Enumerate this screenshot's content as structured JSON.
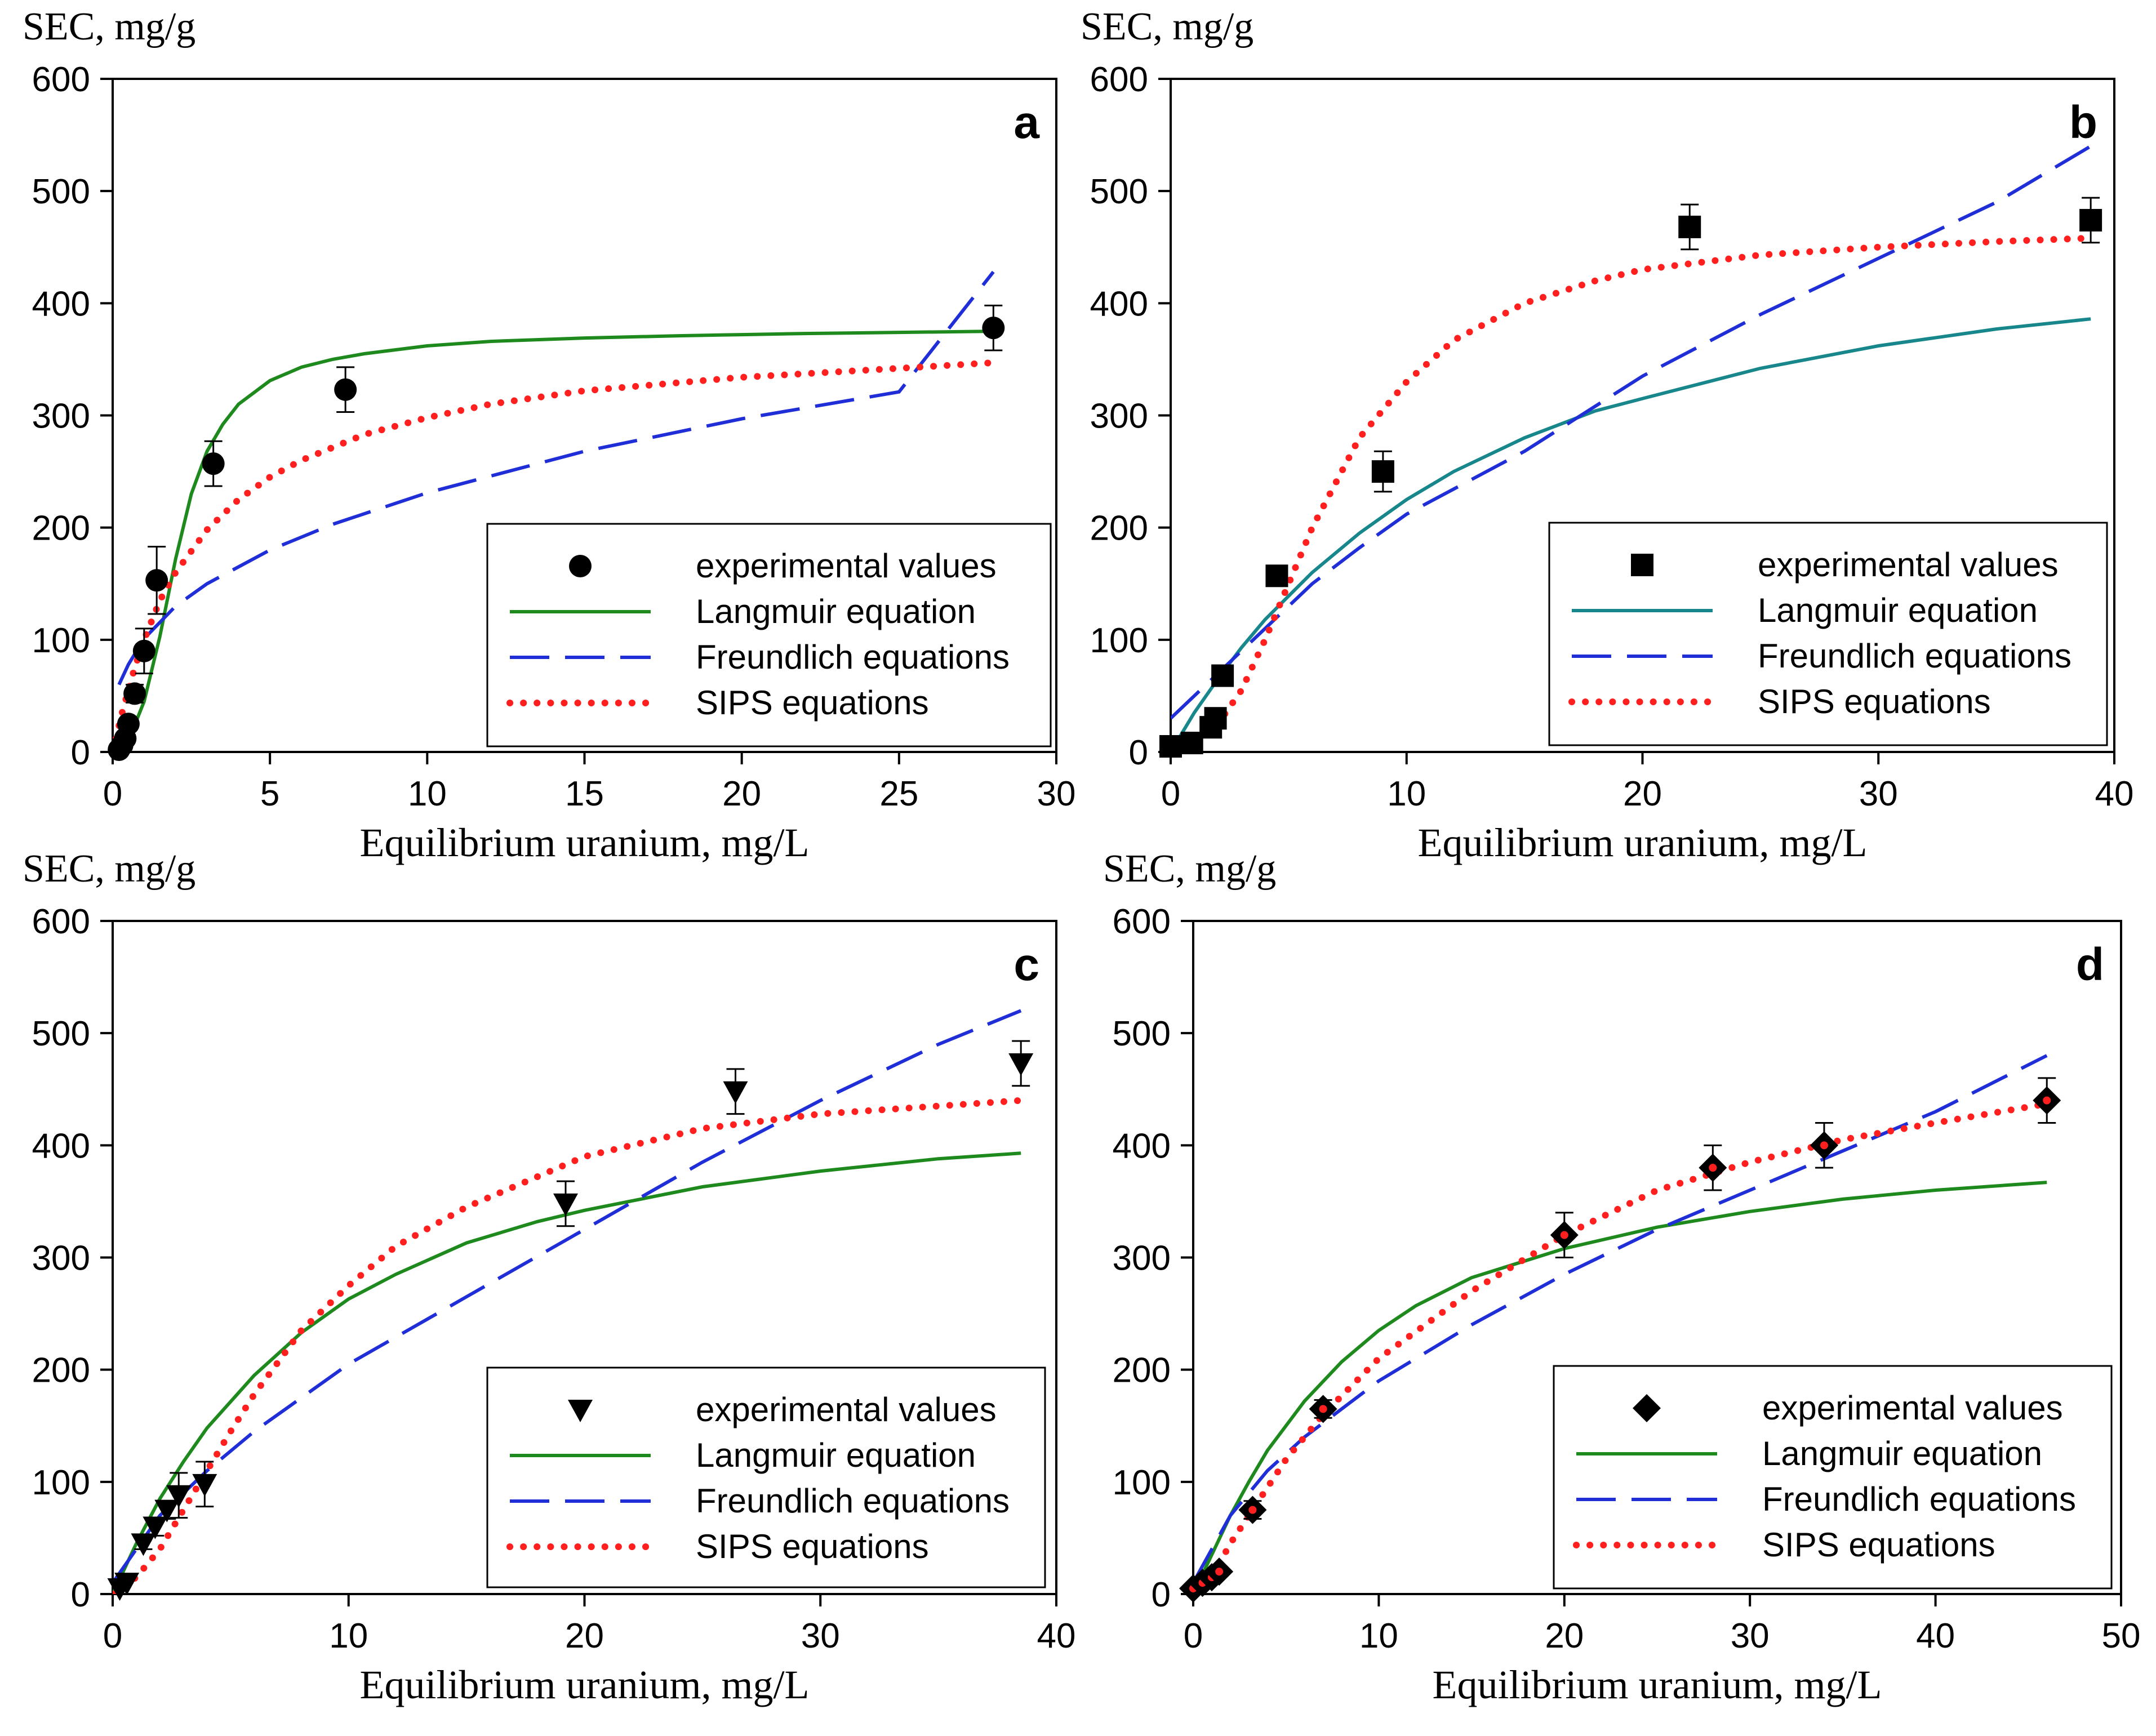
{
  "chart_data": [
    {
      "type": "scatter",
      "panel": "a",
      "xlabel": "Equilibrium uranium, mg/L",
      "ylabel": "SEC, mg/g",
      "xlim": [
        0,
        30
      ],
      "ylim": [
        0,
        600
      ],
      "xticks": [
        0,
        5,
        10,
        15,
        20,
        25,
        30
      ],
      "yticks": [
        0,
        100,
        200,
        300,
        400,
        500,
        600
      ],
      "marker": "circle",
      "legend": [
        "experimental values",
        "Langmuir equation",
        "Freundlich equations",
        "SIPS equations"
      ],
      "points": [
        {
          "x": 0.2,
          "y": 2,
          "err": 3
        },
        {
          "x": 0.3,
          "y": 6,
          "err": 3
        },
        {
          "x": 0.4,
          "y": 12,
          "err": 4
        },
        {
          "x": 0.5,
          "y": 25,
          "err": 5
        },
        {
          "x": 0.7,
          "y": 52,
          "err": 8
        },
        {
          "x": 1.0,
          "y": 90,
          "err": 20
        },
        {
          "x": 1.4,
          "y": 153,
          "err": 30
        },
        {
          "x": 3.2,
          "y": 257,
          "err": 20
        },
        {
          "x": 7.4,
          "y": 323,
          "err": 20
        },
        {
          "x": 28.0,
          "y": 378,
          "err": 20
        }
      ],
      "series": [
        {
          "name": "Langmuir equation",
          "style": "solid",
          "color": "#1e8a1e",
          "x": [
            0,
            0.5,
            1,
            1.5,
            2,
            2.5,
            3,
            3.5,
            4,
            5,
            6,
            7,
            8,
            10,
            12,
            15,
            18,
            20,
            22,
            25,
            28
          ],
          "y": [
            0,
            10,
            45,
            103,
            172,
            230,
            268,
            292,
            310,
            331,
            343,
            350,
            355,
            362,
            366,
            369,
            371,
            372,
            373,
            374,
            375
          ]
        },
        {
          "name": "Freundlich equations",
          "style": "dashed",
          "color": "#1f2ed6",
          "x": [
            0.2,
            0.5,
            1,
            2,
            3,
            5,
            7,
            10,
            15,
            20,
            25,
            28
          ],
          "y": [
            60,
            78,
            101,
            130,
            150,
            180,
            203,
            231,
            268,
            297,
            321,
            428
          ]
        },
        {
          "name": "SIPS equations",
          "style": "dotted",
          "color": "#ff1f1f",
          "x": [
            0,
            0.3,
            0.7,
            1,
            1.5,
            2,
            3,
            4,
            5,
            6,
            8,
            10,
            12,
            15,
            20,
            25,
            28
          ],
          "y": [
            0,
            35,
            75,
            100,
            135,
            160,
            198,
            225,
            245,
            260,
            283,
            298,
            310,
            322,
            334,
            342,
            347
          ]
        }
      ]
    },
    {
      "type": "scatter",
      "panel": "b",
      "xlabel": "Equilibrium uranium, mg/L",
      "ylabel": "SEC, mg/g",
      "xlim": [
        0,
        40
      ],
      "ylim": [
        0,
        600
      ],
      "xticks": [
        0,
        10,
        20,
        30,
        40
      ],
      "yticks": [
        0,
        100,
        200,
        300,
        400,
        500,
        600
      ],
      "marker": "square",
      "legend": [
        "experimental values",
        "Langmuir equation",
        "Freundlich equations",
        "SIPS equations"
      ],
      "points": [
        {
          "x": 0.0,
          "y": 5,
          "err": 0
        },
        {
          "x": 0.9,
          "y": 8,
          "err": 0
        },
        {
          "x": 1.7,
          "y": 22,
          "err": 4
        },
        {
          "x": 1.9,
          "y": 30,
          "err": 4
        },
        {
          "x": 2.2,
          "y": 68,
          "err": 8
        },
        {
          "x": 4.5,
          "y": 157,
          "err": 0
        },
        {
          "x": 9.0,
          "y": 250,
          "err": 18
        },
        {
          "x": 22.0,
          "y": 468,
          "err": 20
        },
        {
          "x": 39.0,
          "y": 474,
          "err": 20
        }
      ],
      "series": [
        {
          "name": "Langmuir equation",
          "style": "solid",
          "color": "#17878c",
          "x": [
            0,
            1,
            2,
            3,
            4,
            6,
            8,
            10,
            12,
            15,
            18,
            20,
            25,
            30,
            35,
            39
          ],
          "y": [
            0,
            35,
            65,
            93,
            118,
            160,
            195,
            225,
            250,
            280,
            304,
            315,
            342,
            362,
            377,
            386
          ]
        },
        {
          "name": "Freundlich equations",
          "style": "dashed",
          "color": "#1f2ed6",
          "x": [
            0,
            2,
            4,
            6,
            8,
            10,
            15,
            20,
            25,
            30,
            35,
            39
          ],
          "y": [
            30,
            70,
            110,
            150,
            182,
            212,
            268,
            335,
            390,
            440,
            490,
            540
          ]
        },
        {
          "name": "SIPS equations",
          "style": "dotted",
          "color": "#ff1f1f",
          "x": [
            0,
            1,
            2,
            3,
            4,
            5,
            6,
            7,
            8,
            10,
            12,
            15,
            18,
            20,
            25,
            30,
            35,
            39
          ],
          "y": [
            0,
            8,
            25,
            55,
            100,
            150,
            200,
            240,
            280,
            330,
            367,
            400,
            420,
            430,
            443,
            450,
            455,
            458
          ]
        }
      ]
    },
    {
      "type": "scatter",
      "panel": "c",
      "xlabel": "Equilibrium uranium, mg/L",
      "ylabel": "SEC, mg/g",
      "xlim": [
        0,
        40
      ],
      "ylim": [
        0,
        600
      ],
      "xticks": [
        0,
        10,
        20,
        30,
        40
      ],
      "yticks": [
        0,
        100,
        200,
        300,
        400,
        500,
        600
      ],
      "marker": "triangle-down",
      "legend": [
        "experimental values",
        "Langmuir equation",
        "Freundlich equations",
        "SIPS equations"
      ],
      "points": [
        {
          "x": 0.3,
          "y": 5,
          "err": 0
        },
        {
          "x": 0.6,
          "y": 10,
          "err": 0
        },
        {
          "x": 1.3,
          "y": 45,
          "err": 5
        },
        {
          "x": 1.8,
          "y": 60,
          "err": 8
        },
        {
          "x": 2.3,
          "y": 75,
          "err": 8
        },
        {
          "x": 2.8,
          "y": 88,
          "err": 20
        },
        {
          "x": 3.9,
          "y": 98,
          "err": 20
        },
        {
          "x": 19.2,
          "y": 348,
          "err": 20
        },
        {
          "x": 26.4,
          "y": 448,
          "err": 20
        },
        {
          "x": 38.5,
          "y": 473,
          "err": 20
        }
      ],
      "series": [
        {
          "name": "Langmuir equation",
          "style": "solid",
          "color": "#1e8a1e",
          "x": [
            0,
            1,
            2,
            3,
            4,
            6,
            8,
            10,
            12,
            15,
            18,
            20,
            25,
            30,
            35,
            38.5
          ],
          "y": [
            0,
            45,
            85,
            118,
            148,
            195,
            233,
            263,
            285,
            313,
            332,
            342,
            363,
            377,
            388,
            393
          ]
        },
        {
          "name": "Freundlich equations",
          "style": "dashed",
          "color": "#1f2ed6",
          "x": [
            0,
            2,
            4,
            6,
            8,
            10,
            15,
            20,
            25,
            30,
            35,
            38.5
          ],
          "y": [
            10,
            70,
            110,
            145,
            175,
            205,
            265,
            325,
            385,
            440,
            490,
            520
          ]
        },
        {
          "name": "SIPS equations",
          "style": "dotted",
          "color": "#ff1f1f",
          "x": [
            0,
            1,
            2,
            3,
            4,
            5,
            6,
            8,
            10,
            12,
            15,
            20,
            25,
            30,
            35,
            38.5
          ],
          "y": [
            0,
            15,
            40,
            75,
            110,
            145,
            178,
            235,
            275,
            310,
            345,
            390,
            415,
            428,
            435,
            440
          ]
        }
      ]
    },
    {
      "type": "scatter",
      "panel": "d",
      "xlabel": "Equilibrium uranium, mg/L",
      "ylabel": "SEC, mg/g",
      "xlim": [
        0,
        50
      ],
      "ylim": [
        0,
        600
      ],
      "xticks": [
        0,
        10,
        20,
        30,
        40,
        50
      ],
      "yticks": [
        0,
        100,
        200,
        300,
        400,
        500,
        600
      ],
      "marker": "diamond",
      "legend": [
        "experimental values",
        "Langmuir equation",
        "Freundlich equations",
        "SIPS equations"
      ],
      "points": [
        {
          "x": 0.0,
          "y": 5,
          "err": 0
        },
        {
          "x": 0.5,
          "y": 10,
          "err": 0
        },
        {
          "x": 1.0,
          "y": 15,
          "err": 0
        },
        {
          "x": 1.4,
          "y": 20,
          "err": 0
        },
        {
          "x": 3.2,
          "y": 75,
          "err": 8
        },
        {
          "x": 7.0,
          "y": 165,
          "err": 8
        },
        {
          "x": 20.0,
          "y": 320,
          "err": 20
        },
        {
          "x": 28.0,
          "y": 380,
          "err": 20
        },
        {
          "x": 34.0,
          "y": 400,
          "err": 20
        },
        {
          "x": 46.0,
          "y": 440,
          "err": 20
        }
      ],
      "series": [
        {
          "name": "Langmuir equation",
          "style": "solid",
          "color": "#1e8a1e",
          "x": [
            0,
            1,
            2,
            3,
            4,
            6,
            8,
            10,
            12,
            15,
            20,
            25,
            30,
            35,
            40,
            46
          ],
          "y": [
            0,
            35,
            70,
            100,
            128,
            172,
            207,
            235,
            257,
            282,
            308,
            327,
            341,
            352,
            360,
            367
          ]
        },
        {
          "name": "Freundlich equations",
          "style": "dashed",
          "color": "#1f2ed6",
          "x": [
            0,
            2,
            4,
            6,
            8,
            10,
            15,
            20,
            25,
            30,
            35,
            40,
            46
          ],
          "y": [
            10,
            70,
            110,
            140,
            165,
            190,
            240,
            285,
            325,
            360,
            395,
            430,
            480
          ]
        },
        {
          "name": "SIPS equations",
          "style": "dotted",
          "color": "#ff1f1f",
          "x": [
            0,
            1,
            2,
            3,
            5,
            7,
            10,
            15,
            20,
            25,
            30,
            35,
            40,
            46
          ],
          "y": [
            0,
            15,
            45,
            70,
            120,
            160,
            210,
            270,
            320,
            360,
            385,
            405,
            420,
            437
          ]
        }
      ]
    }
  ]
}
